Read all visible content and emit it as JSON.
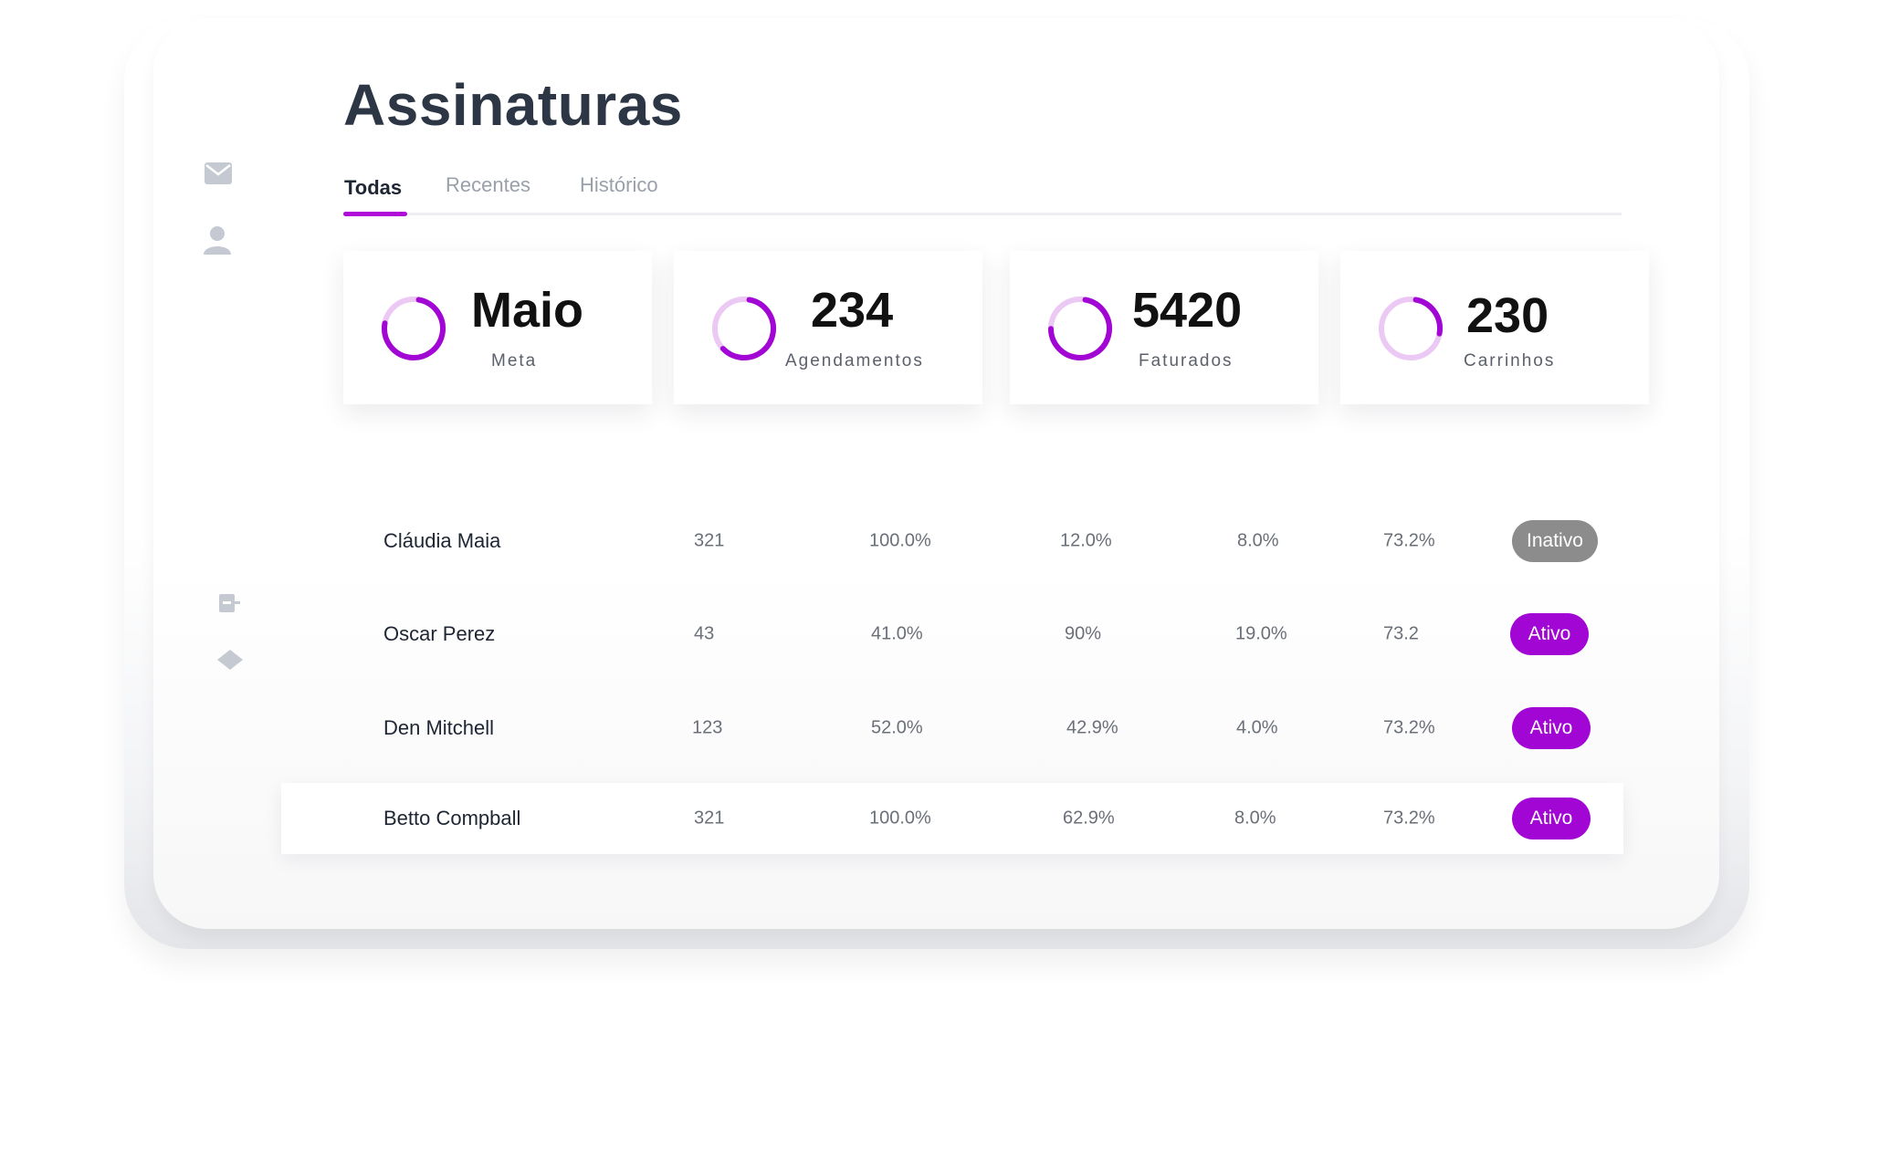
{
  "page": {
    "title": "Assinaturas"
  },
  "tabs": [
    {
      "label": "Todas",
      "active": true
    },
    {
      "label": "Recentes",
      "active": false
    },
    {
      "label": "Histórico",
      "active": false
    }
  ],
  "rail": {
    "icons": [
      "mail-icon",
      "user-icon",
      "document-icon",
      "diamond-icon"
    ]
  },
  "stats": [
    {
      "value": "Maio",
      "label": "Meta",
      "progress": 0.75
    },
    {
      "value": "234",
      "label": "Agendamentos",
      "progress": 0.6
    },
    {
      "value": "5420",
      "label": "Faturados",
      "progress": 0.72
    },
    {
      "value": "230",
      "label": "Carrinhos",
      "progress": 0.25
    }
  ],
  "colors": {
    "accent": "#a106d4",
    "accent_light": "#ecc8f5",
    "inactive": "#8c8c8c",
    "title": "#2d3645"
  },
  "table": {
    "rows": [
      {
        "name": "Cláudia Maia",
        "c1": "321",
        "c2": "100.0%",
        "c3": "12.0%",
        "c4": "8.0%",
        "c5": "73.2%",
        "status": "Inativo"
      },
      {
        "name": "Oscar Perez",
        "c1": "43",
        "c2": "41.0%",
        "c3": "90%",
        "c4": "19.0%",
        "c5": "73.2",
        "status": "Ativo"
      },
      {
        "name": "Den Mitchell",
        "c1": "123",
        "c2": "52.0%",
        "c3": "42.9%",
        "c4": "4.0%",
        "c5": "73.2%",
        "status": "Ativo"
      },
      {
        "name": "Betto Compball",
        "c1": "321",
        "c2": "100.0%",
        "c3": "62.9%",
        "c4": "8.0%",
        "c5": "73.2%",
        "status": "Ativo"
      }
    ]
  }
}
